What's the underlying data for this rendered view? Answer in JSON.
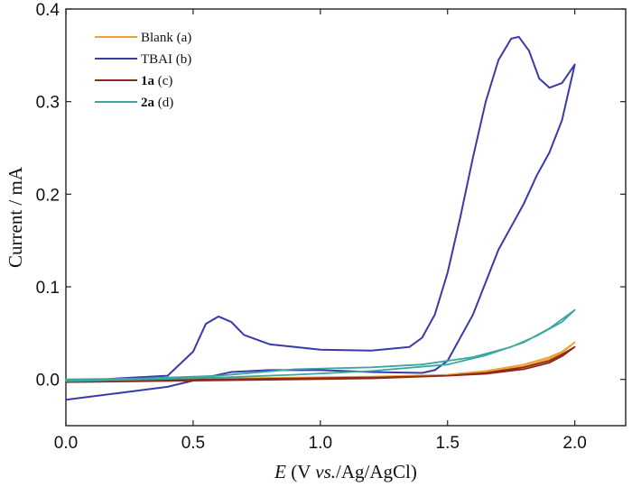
{
  "chart_data": {
    "type": "line",
    "title": "",
    "xlabel": {
      "italic": "E",
      "rest": " (V vs./Ag/AgCl)",
      "parts": [
        "E",
        " (V ",
        "vs.",
        "/Ag/AgCl)"
      ]
    },
    "ylabel": "Current / mA",
    "xlim": [
      0.0,
      2.2
    ],
    "ylim": [
      -0.05,
      0.4
    ],
    "xticks": [
      0.0,
      0.5,
      1.0,
      1.5,
      2.0
    ],
    "xtick_labels": [
      "0.0",
      "0.5",
      "1.0",
      "1.5",
      "2.0"
    ],
    "yticks": [
      0.0,
      0.1,
      0.2,
      0.3,
      0.4
    ],
    "ytick_labels": [
      "0.0",
      "0.1",
      "0.2",
      "0.3",
      "0.4"
    ],
    "legend_position": "top-left",
    "series": [
      {
        "name": "Blank (a)",
        "label_bold": "",
        "label_rest": "Blank (a)",
        "color": "#F0A030",
        "x": [
          0.0,
          0.3,
          0.6,
          0.9,
          1.2,
          1.5,
          1.65,
          1.8,
          1.9,
          1.95,
          2.0,
          1.95,
          1.9,
          1.8,
          1.65,
          1.5,
          1.2,
          0.9,
          0.6,
          0.3,
          0.0
        ],
        "y": [
          -0.001,
          0.0,
          0.001,
          0.002,
          0.003,
          0.005,
          0.008,
          0.014,
          0.022,
          0.029,
          0.04,
          0.03,
          0.024,
          0.016,
          0.009,
          0.005,
          0.002,
          0.001,
          0.0,
          -0.001,
          -0.002
        ]
      },
      {
        "name": "TBAI (b)",
        "label_bold": "",
        "label_rest": "TBAI (b)",
        "color": "#3A3AA8",
        "x": [
          0.0,
          0.2,
          0.4,
          0.5,
          0.55,
          0.6,
          0.65,
          0.7,
          0.8,
          1.0,
          1.2,
          1.35,
          1.4,
          1.45,
          1.5,
          1.55,
          1.6,
          1.65,
          1.7,
          1.75,
          1.78,
          1.82,
          1.86,
          1.9,
          1.95,
          2.0,
          1.95,
          1.9,
          1.85,
          1.8,
          1.75,
          1.7,
          1.6,
          1.5,
          1.45,
          1.4,
          1.2,
          1.0,
          0.8,
          0.65,
          0.55,
          0.4,
          0.2,
          0.0
        ],
        "y": [
          -0.003,
          0.001,
          0.004,
          0.03,
          0.06,
          0.068,
          0.062,
          0.048,
          0.038,
          0.032,
          0.031,
          0.035,
          0.045,
          0.07,
          0.115,
          0.175,
          0.24,
          0.3,
          0.345,
          0.368,
          0.37,
          0.355,
          0.325,
          0.315,
          0.32,
          0.34,
          0.28,
          0.245,
          0.22,
          0.19,
          0.165,
          0.14,
          0.07,
          0.02,
          0.01,
          0.007,
          0.008,
          0.01,
          0.01,
          0.008,
          0.002,
          -0.008,
          -0.015,
          -0.022
        ]
      },
      {
        "name": "1a (c)",
        "label_bold": "1a",
        "label_rest": " (c)",
        "color": "#8B2A1A",
        "x": [
          0.0,
          0.3,
          0.6,
          0.9,
          1.2,
          1.5,
          1.65,
          1.8,
          1.9,
          1.95,
          2.0,
          1.95,
          1.9,
          1.8,
          1.65,
          1.5,
          1.2,
          0.9,
          0.6,
          0.3,
          0.0
        ],
        "y": [
          -0.002,
          -0.001,
          0.0,
          0.001,
          0.002,
          0.004,
          0.006,
          0.011,
          0.018,
          0.025,
          0.035,
          0.027,
          0.02,
          0.013,
          0.007,
          0.004,
          0.001,
          0.0,
          -0.001,
          -0.002,
          -0.003
        ]
      },
      {
        "name": "2a (d)",
        "label_bold": "2a",
        "label_rest": " (d)",
        "color": "#3AA8A0",
        "x": [
          0.0,
          0.3,
          0.6,
          0.9,
          1.2,
          1.4,
          1.6,
          1.75,
          1.85,
          1.95,
          2.0,
          1.9,
          1.8,
          1.65,
          1.5,
          1.2,
          0.9,
          0.6,
          0.3,
          0.0
        ],
        "y": [
          0.0,
          0.001,
          0.004,
          0.011,
          0.013,
          0.016,
          0.024,
          0.035,
          0.047,
          0.062,
          0.075,
          0.055,
          0.04,
          0.026,
          0.016,
          0.009,
          0.005,
          0.002,
          0.0,
          -0.002
        ]
      }
    ]
  }
}
